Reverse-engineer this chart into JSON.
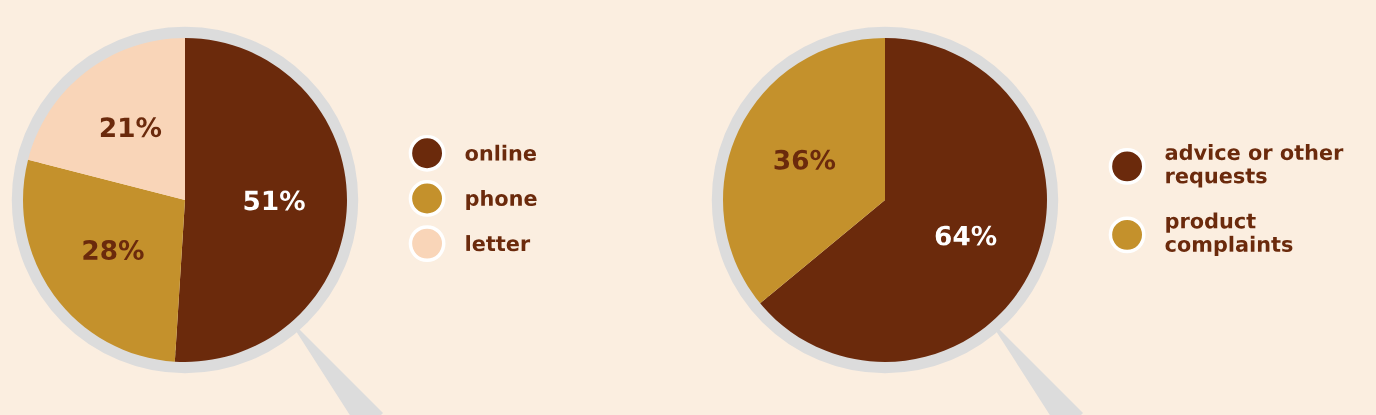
{
  "chart_data": [
    {
      "type": "pie",
      "categories": [
        "online",
        "phone",
        "letter"
      ],
      "values": [
        51,
        28,
        21
      ],
      "value_labels": [
        "51%",
        "28%",
        "21%"
      ],
      "colors": [
        "#6b2a0c",
        "#c4912c",
        "#f9d5b8"
      ],
      "legend": "right"
    },
    {
      "type": "pie",
      "categories": [
        "advice or other\nrequests",
        "product\ncomplaints"
      ],
      "values": [
        64,
        36
      ],
      "value_labels": [
        "64%",
        "36%"
      ],
      "colors": [
        "#6b2a0c",
        "#c4912c"
      ],
      "legend": "right"
    }
  ]
}
